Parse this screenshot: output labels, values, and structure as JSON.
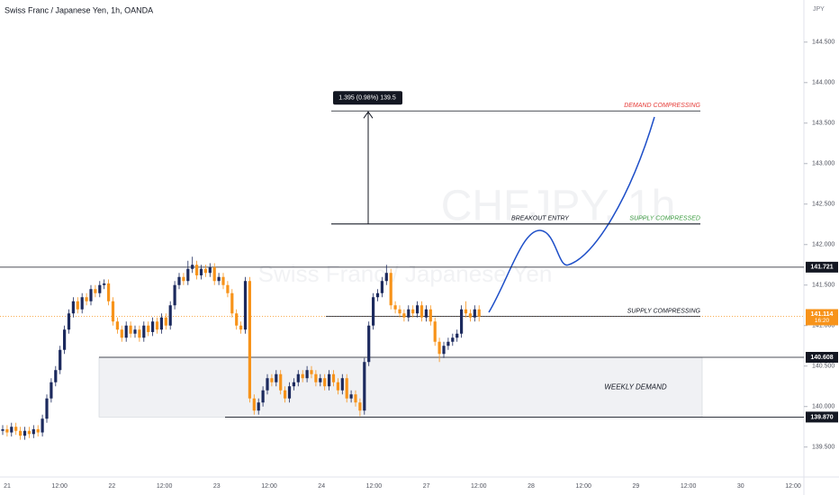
{
  "chart_data": {
    "type": "candlestick",
    "title": "Swiss Franc / Japanese Yen, 1h, OANDA",
    "watermark": "CHFJPY, 1h",
    "watermark_subtitle": "Swiss Franc / Japanese Yen",
    "y_axis_unit": "JPY",
    "ylim": [
      139.13,
      145.02
    ],
    "yticks": [
      {
        "value": 139.5,
        "label": "139.500"
      },
      {
        "value": 140,
        "label": "140.000"
      },
      {
        "value": 140.5,
        "label": "140.500"
      },
      {
        "value": 141,
        "label": "141.000"
      },
      {
        "value": 141.5,
        "label": "141.500"
      },
      {
        "value": 142,
        "label": "142.000"
      },
      {
        "value": 142.5,
        "label": "142.500"
      },
      {
        "value": 143,
        "label": "143.000"
      },
      {
        "value": 143.5,
        "label": "143.500"
      },
      {
        "value": 144,
        "label": "144.000"
      },
      {
        "value": 144.5,
        "label": "144.500"
      }
    ],
    "x_tick_labels": [
      "21",
      "12:00",
      "22",
      "12:00",
      "23",
      "12:00",
      "24",
      "12:00",
      "27",
      "12:00",
      "28",
      "12:00",
      "29",
      "12:00",
      "30",
      "12:00"
    ],
    "up_color": "#1c2a5e",
    "down_color": "#f7931a",
    "candles": [
      [
        139.7,
        139.77,
        139.65,
        139.72
      ],
      [
        139.72,
        139.77,
        139.63,
        139.68
      ],
      [
        139.68,
        139.8,
        139.63,
        139.75
      ],
      [
        139.75,
        139.8,
        139.65,
        139.7
      ],
      [
        139.7,
        139.75,
        139.59,
        139.64
      ],
      [
        139.64,
        139.75,
        139.59,
        139.7
      ],
      [
        139.7,
        139.75,
        139.61,
        139.66
      ],
      [
        139.66,
        139.77,
        139.61,
        139.72
      ],
      [
        139.72,
        139.77,
        139.63,
        139.68
      ],
      [
        139.68,
        139.9,
        139.63,
        139.85
      ],
      [
        139.85,
        140.15,
        139.8,
        140.1
      ],
      [
        140.1,
        140.35,
        140.05,
        140.3
      ],
      [
        140.3,
        140.5,
        140.25,
        140.45
      ],
      [
        140.45,
        140.75,
        140.4,
        140.7
      ],
      [
        140.7,
        141.0,
        140.65,
        140.95
      ],
      [
        140.95,
        141.2,
        140.9,
        141.15
      ],
      [
        141.15,
        141.35,
        141.1,
        141.3
      ],
      [
        141.3,
        141.35,
        141.15,
        141.2
      ],
      [
        141.2,
        141.4,
        141.15,
        141.35
      ],
      [
        141.35,
        141.4,
        141.25,
        141.3
      ],
      [
        141.3,
        141.5,
        141.25,
        141.45
      ],
      [
        141.45,
        141.5,
        141.35,
        141.4
      ],
      [
        141.4,
        141.55,
        141.35,
        141.5
      ],
      [
        141.5,
        141.57,
        141.45,
        141.52
      ],
      [
        141.52,
        141.57,
        141.25,
        141.3
      ],
      [
        141.3,
        141.35,
        141.0,
        141.05
      ],
      [
        141.05,
        141.1,
        140.9,
        140.95
      ],
      [
        140.95,
        141.0,
        140.8,
        140.85
      ],
      [
        140.85,
        141.05,
        140.8,
        141.0
      ],
      [
        141.0,
        141.05,
        140.85,
        140.9
      ],
      [
        140.9,
        141.0,
        140.85,
        140.95
      ],
      [
        140.95,
        141.0,
        140.8,
        140.85
      ],
      [
        140.85,
        141.05,
        140.8,
        141.0
      ],
      [
        141.0,
        141.05,
        140.87,
        140.92
      ],
      [
        140.92,
        141.1,
        140.87,
        141.05
      ],
      [
        141.05,
        141.1,
        140.9,
        140.95
      ],
      [
        140.95,
        141.15,
        140.9,
        141.1
      ],
      [
        141.1,
        141.15,
        140.95,
        141.0
      ],
      [
        141.0,
        141.3,
        140.95,
        141.25
      ],
      [
        141.25,
        141.55,
        141.2,
        141.5
      ],
      [
        141.5,
        141.65,
        141.45,
        141.6
      ],
      [
        141.6,
        141.65,
        141.5,
        141.55
      ],
      [
        141.55,
        141.8,
        141.5,
        141.7
      ],
      [
        141.7,
        141.85,
        141.65,
        141.75
      ],
      [
        141.75,
        141.8,
        141.57,
        141.62
      ],
      [
        141.62,
        141.75,
        141.57,
        141.7
      ],
      [
        141.7,
        141.75,
        141.6,
        141.65
      ],
      [
        141.65,
        141.77,
        141.6,
        141.72
      ],
      [
        141.72,
        141.77,
        141.5,
        141.55
      ],
      [
        141.55,
        141.65,
        141.5,
        141.6
      ],
      [
        141.6,
        141.65,
        141.45,
        141.5
      ],
      [
        141.5,
        141.55,
        141.35,
        141.4
      ],
      [
        141.4,
        141.45,
        141.1,
        141.15
      ],
      [
        141.15,
        141.2,
        140.95,
        141.0
      ],
      [
        141.0,
        141.05,
        140.9,
        140.95
      ],
      [
        140.95,
        141.6,
        140.9,
        141.55
      ],
      [
        141.55,
        141.6,
        140.05,
        140.1
      ],
      [
        140.1,
        140.15,
        139.9,
        139.95
      ],
      [
        139.95,
        140.1,
        139.9,
        140.05
      ],
      [
        140.05,
        140.25,
        140.0,
        140.2
      ],
      [
        140.2,
        140.4,
        140.15,
        140.35
      ],
      [
        140.35,
        140.4,
        140.25,
        140.3
      ],
      [
        140.3,
        140.45,
        140.25,
        140.4
      ],
      [
        140.4,
        140.45,
        140.15,
        140.2
      ],
      [
        140.2,
        140.25,
        140.05,
        140.1
      ],
      [
        140.1,
        140.3,
        140.05,
        140.25
      ],
      [
        140.25,
        140.35,
        140.2,
        140.3
      ],
      [
        140.3,
        140.45,
        140.25,
        140.4
      ],
      [
        140.4,
        140.45,
        140.3,
        140.35
      ],
      [
        140.35,
        140.5,
        140.3,
        140.45
      ],
      [
        140.45,
        140.5,
        140.35,
        140.4
      ],
      [
        140.4,
        140.45,
        140.25,
        140.3
      ],
      [
        140.3,
        140.4,
        140.25,
        140.35
      ],
      [
        140.35,
        140.4,
        140.2,
        140.25
      ],
      [
        140.25,
        140.45,
        140.2,
        140.4
      ],
      [
        140.4,
        140.45,
        140.25,
        140.3
      ],
      [
        140.3,
        140.35,
        140.15,
        140.2
      ],
      [
        140.2,
        140.4,
        140.15,
        140.35
      ],
      [
        140.35,
        140.4,
        140.05,
        140.1
      ],
      [
        140.1,
        140.2,
        140.05,
        140.15
      ],
      [
        140.15,
        140.2,
        140.0,
        140.05
      ],
      [
        140.05,
        140.1,
        139.88,
        139.95
      ],
      [
        139.95,
        140.6,
        139.9,
        140.55
      ],
      [
        140.55,
        141.05,
        140.5,
        141.0
      ],
      [
        141.0,
        141.4,
        140.95,
        141.35
      ],
      [
        141.35,
        141.45,
        141.3,
        141.4
      ],
      [
        141.4,
        141.6,
        141.35,
        141.55
      ],
      [
        141.55,
        141.75,
        141.5,
        141.65
      ],
      [
        141.65,
        141.7,
        141.2,
        141.25
      ],
      [
        141.25,
        141.3,
        141.15,
        141.2
      ],
      [
        141.2,
        141.25,
        141.1,
        141.15
      ],
      [
        141.15,
        141.2,
        141.05,
        141.1
      ],
      [
        141.1,
        141.25,
        141.05,
        141.2
      ],
      [
        141.2,
        141.25,
        141.1,
        141.15
      ],
      [
        141.15,
        141.3,
        141.1,
        141.25
      ],
      [
        141.25,
        141.3,
        141.05,
        141.1
      ],
      [
        141.1,
        141.25,
        141.05,
        141.2
      ],
      [
        141.2,
        141.25,
        141.0,
        141.05
      ],
      [
        141.05,
        141.1,
        140.75,
        140.8
      ],
      [
        140.8,
        140.85,
        140.55,
        140.65
      ],
      [
        140.65,
        140.8,
        140.6,
        140.75
      ],
      [
        140.75,
        140.85,
        140.7,
        140.8
      ],
      [
        140.8,
        140.9,
        140.75,
        140.85
      ],
      [
        140.85,
        140.95,
        140.8,
        140.9
      ],
      [
        140.9,
        141.25,
        140.85,
        141.2
      ],
      [
        141.2,
        141.3,
        141.1,
        141.15
      ],
      [
        141.15,
        141.2,
        141.05,
        141.1
      ],
      [
        141.1,
        141.25,
        141.05,
        141.2
      ],
      [
        141.2,
        141.25,
        141.05,
        141.11
      ]
    ],
    "last_price": 141.114,
    "last_price_color": "#f7931a",
    "countdown": "16:20",
    "levels": [
      141.721,
      140.608,
      {
        "value": 139.87,
        "label": "139.870"
      }
    ],
    "zone_label": "WEEKLY DEMAND",
    "measure": {
      "from": 142.255,
      "to": 143.65,
      "label": "1.395 (0.98%) 139.5"
    },
    "annotations": [
      {
        "text": "DEMAND COMPRESSING",
        "price": 143.65,
        "color": "#e53935"
      },
      {
        "text": "BREAKOUT ENTRY",
        "price": 142.255,
        "color": "#131722"
      },
      {
        "text": "SUPPLY COMPRESSED",
        "price": 142.255,
        "color": "#43a047"
      },
      {
        "text": "SUPPLY COMPRESSING",
        "price": 141.114,
        "color": "#131722"
      }
    ]
  }
}
